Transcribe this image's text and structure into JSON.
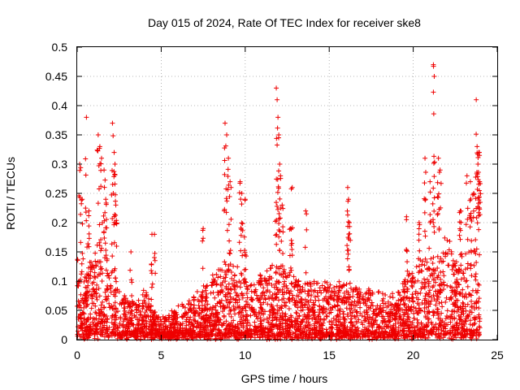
{
  "chart_data": {
    "type": "scatter",
    "title": "Day 015 of 2024, Rate Of TEC Index for receiver ske8",
    "xlabel": "GPS time / hours",
    "ylabel": "ROTI / TECUs",
    "xlim": [
      0,
      25
    ],
    "ylim": [
      0,
      0.5
    ],
    "x_ticks": [
      "0",
      "5",
      "10",
      "15",
      "20",
      "25"
    ],
    "y_ticks": [
      "0",
      "0.05",
      "0.1",
      "0.15",
      "0.2",
      "0.25",
      "0.3",
      "0.35",
      "0.4",
      "0.45",
      "0.5"
    ],
    "grid": true,
    "marker": "+",
    "color": "#ee0000",
    "series": [
      {
        "name": "ROTI",
        "envelope": {
          "x": [
            0,
            0.5,
            1,
            1.5,
            2,
            2.5,
            3,
            3.5,
            4,
            4.5,
            5,
            5.5,
            6,
            6.5,
            7,
            7.5,
            8,
            8.5,
            9,
            9.5,
            10,
            10.5,
            11,
            11.5,
            12,
            12.5,
            13,
            13.5,
            14,
            14.5,
            15,
            15.5,
            16,
            16.5,
            17,
            17.5,
            18,
            18.5,
            19,
            19.5,
            20,
            20.5,
            21,
            21.5,
            22,
            22.5,
            23,
            23.5,
            24
          ],
          "typical_max": [
            0.14,
            0.11,
            0.14,
            0.13,
            0.15,
            0.08,
            0.07,
            0.06,
            0.08,
            0.05,
            0.03,
            0.04,
            0.05,
            0.06,
            0.07,
            0.08,
            0.1,
            0.12,
            0.13,
            0.12,
            0.1,
            0.1,
            0.11,
            0.12,
            0.13,
            0.11,
            0.1,
            0.09,
            0.1,
            0.09,
            0.11,
            0.1,
            0.1,
            0.09,
            0.08,
            0.08,
            0.08,
            0.07,
            0.08,
            0.1,
            0.11,
            0.13,
            0.14,
            0.16,
            0.18,
            0.14,
            0.15,
            0.2,
            0.17
          ]
        },
        "peaks": [
          {
            "x": 0.15,
            "y": 0.3
          },
          {
            "x": 0.3,
            "y": 0.24
          },
          {
            "x": 0.55,
            "y": 0.38
          },
          {
            "x": 0.7,
            "y": 0.22
          },
          {
            "x": 1.25,
            "y": 0.35
          },
          {
            "x": 1.35,
            "y": 0.33
          },
          {
            "x": 1.45,
            "y": 0.31
          },
          {
            "x": 1.6,
            "y": 0.29
          },
          {
            "x": 1.7,
            "y": 0.24
          },
          {
            "x": 2.1,
            "y": 0.37
          },
          {
            "x": 2.2,
            "y": 0.32
          },
          {
            "x": 2.25,
            "y": 0.3
          },
          {
            "x": 2.3,
            "y": 0.23
          },
          {
            "x": 3.2,
            "y": 0.15
          },
          {
            "x": 4.45,
            "y": 0.18
          },
          {
            "x": 4.6,
            "y": 0.18
          },
          {
            "x": 7.5,
            "y": 0.19
          },
          {
            "x": 8.8,
            "y": 0.37
          },
          {
            "x": 8.9,
            "y": 0.35
          },
          {
            "x": 9.0,
            "y": 0.31
          },
          {
            "x": 9.1,
            "y": 0.27
          },
          {
            "x": 9.7,
            "y": 0.27
          },
          {
            "x": 9.8,
            "y": 0.25
          },
          {
            "x": 10.0,
            "y": 0.24
          },
          {
            "x": 11.85,
            "y": 0.43
          },
          {
            "x": 11.9,
            "y": 0.41
          },
          {
            "x": 11.95,
            "y": 0.38
          },
          {
            "x": 12.0,
            "y": 0.35
          },
          {
            "x": 12.05,
            "y": 0.3
          },
          {
            "x": 12.1,
            "y": 0.28
          },
          {
            "x": 12.2,
            "y": 0.23
          },
          {
            "x": 12.8,
            "y": 0.26
          },
          {
            "x": 12.7,
            "y": 0.19
          },
          {
            "x": 13.6,
            "y": 0.22
          },
          {
            "x": 16.1,
            "y": 0.26
          },
          {
            "x": 16.15,
            "y": 0.24
          },
          {
            "x": 16.2,
            "y": 0.2
          },
          {
            "x": 19.6,
            "y": 0.21
          },
          {
            "x": 20.35,
            "y": 0.2
          },
          {
            "x": 20.7,
            "y": 0.31
          },
          {
            "x": 21.2,
            "y": 0.47
          },
          {
            "x": 21.25,
            "y": 0.45
          },
          {
            "x": 21.0,
            "y": 0.27
          },
          {
            "x": 21.5,
            "y": 0.31
          },
          {
            "x": 21.6,
            "y": 0.29
          },
          {
            "x": 22.8,
            "y": 0.22
          },
          {
            "x": 23.2,
            "y": 0.28
          },
          {
            "x": 23.4,
            "y": 0.27
          },
          {
            "x": 23.6,
            "y": 0.25
          },
          {
            "x": 23.75,
            "y": 0.41
          },
          {
            "x": 23.8,
            "y": 0.33
          },
          {
            "x": 23.9,
            "y": 0.32
          },
          {
            "x": 23.85,
            "y": 0.3
          },
          {
            "x": 23.95,
            "y": 0.27
          }
        ]
      }
    ]
  }
}
